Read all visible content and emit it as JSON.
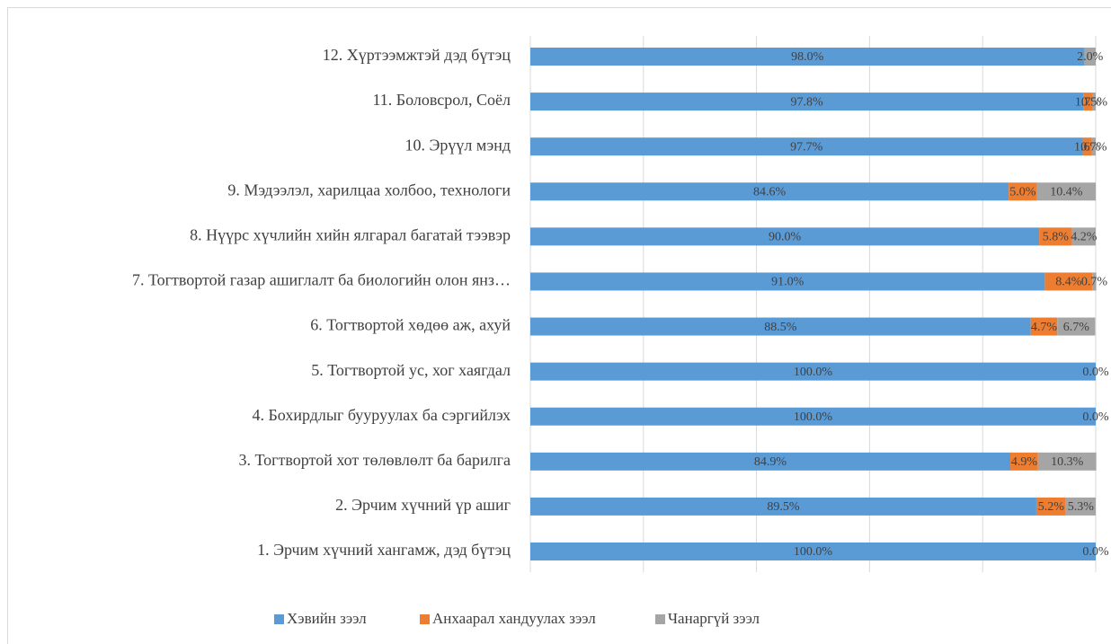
{
  "chart_data": {
    "type": "stacked-barh",
    "categories": [
      "1. Эрчим хүчний хангамж, дэд бүтэц",
      "2. Эрчим хүчний үр ашиг",
      "3. Тогтвортой хот төлөвлөлт ба барилга",
      "4. Бохирдлыг бууруулах ба сэргийлэх",
      "5. Тогтвортой ус, хог хаягдал",
      "6. Тогтвортой хөдөө аж, ахуй",
      "7. Тогтвортой газар ашиглалт ба биологийн олон янз…",
      "8. Нүүрс хүчлийн хийн ялгарал багатай тээвэр",
      "9. Мэдээлэл, харилцаа холбоо, технологи",
      "10. Эрүүл мэнд",
      "11. Боловсрол, Соёл",
      "12. Хүртээмжтэй дэд бүтэц"
    ],
    "series": [
      {
        "name": "Хэвийн зээл",
        "color": "#5b9bd5",
        "values": [
          100.0,
          89.5,
          84.9,
          100.0,
          100.0,
          88.5,
          91.0,
          90.0,
          84.6,
          97.7,
          97.8,
          98.0
        ],
        "value_labels": [
          "100.0%",
          "89.5%",
          "84.9%",
          "100.0%",
          "100.0%",
          "88.5%",
          "91.0%",
          "90.0%",
          "84.6%",
          "97.7%",
          "97.8%",
          "98.0%"
        ]
      },
      {
        "name": "Анхаарал хандуулах зээл",
        "color": "#ed7d31",
        "values": [
          null,
          5.2,
          4.9,
          null,
          null,
          4.7,
          8.4,
          5.8,
          5.0,
          1.6,
          1.7,
          null
        ],
        "value_labels": [
          null,
          "5.2%",
          "4.9%",
          null,
          null,
          "4.7%",
          "8.4%",
          "5.8%",
          "5.0%",
          "1.6%",
          "1.7%",
          null
        ]
      },
      {
        "name": "Чанаргүй зээл",
        "color": "#a5a5a5",
        "values": [
          0.0,
          5.3,
          10.3,
          0.0,
          0.0,
          6.7,
          0.7,
          4.2,
          10.4,
          0.7,
          0.5,
          2.0
        ],
        "value_labels": [
          "0.0%",
          "5.3%",
          "10.3%",
          "0.0%",
          "0.0%",
          "6.7%",
          "0.7%",
          "4.2%",
          "10.4%",
          "0.7%",
          "0.5%",
          "2.0%"
        ]
      }
    ],
    "xlim": [
      0,
      100
    ],
    "xticks": [
      0,
      20,
      40,
      60,
      80,
      100
    ],
    "grid": true,
    "legend": "bottom"
  }
}
